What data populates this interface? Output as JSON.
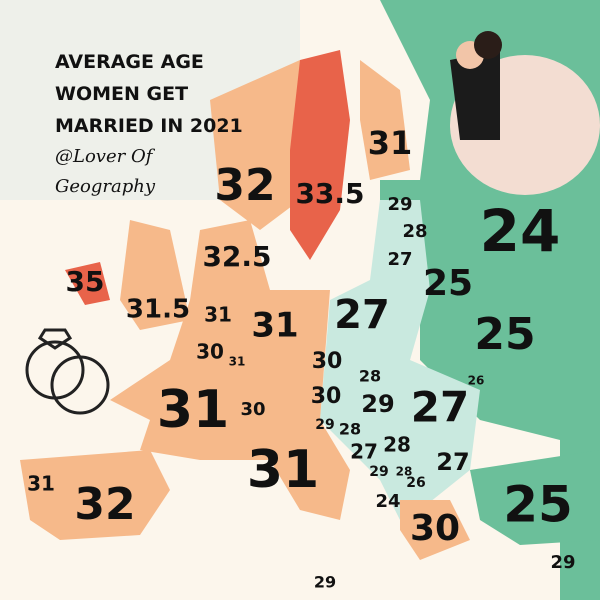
{
  "title": [
    "AVERAGE AGE",
    "WOMEN GET",
    "MARRIED IN 2021"
  ],
  "credit": [
    "@Lover Of",
    "Geography"
  ],
  "values": [
    32,
    33.5,
    31,
    29,
    28,
    27,
    24,
    32.5,
    35,
    31.5,
    25,
    27,
    31,
    31,
    25,
    30,
    31,
    30,
    28,
    26,
    30,
    29,
    27,
    31,
    30,
    29,
    28,
    27,
    28,
    27,
    29,
    28,
    26,
    31,
    31,
    24,
    32,
    25,
    30,
    29,
    29
  ]
}
